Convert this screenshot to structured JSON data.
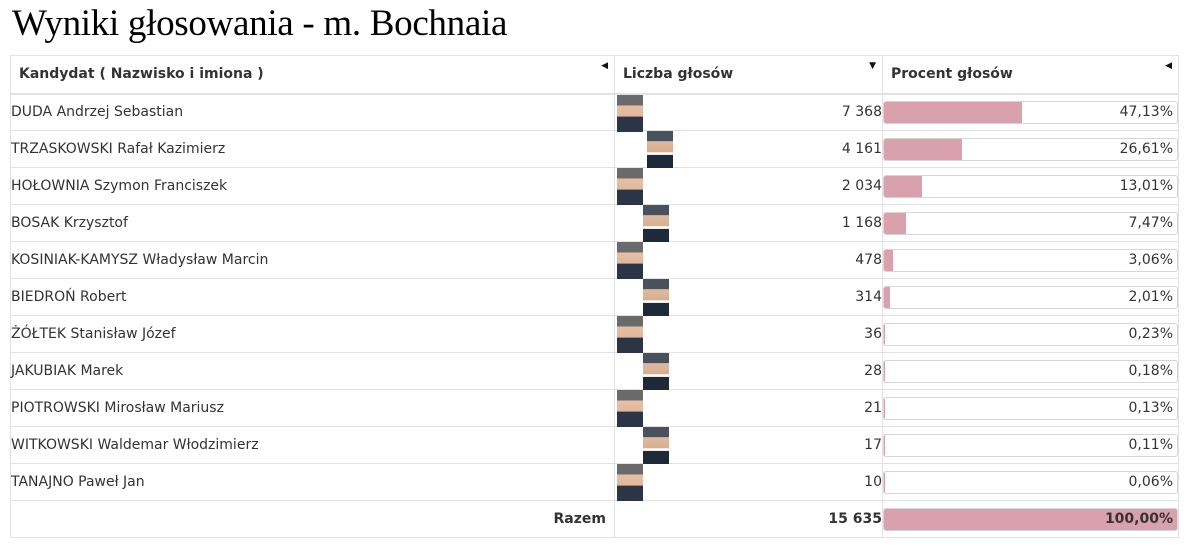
{
  "title": "Wyniki głosowania - m. Bochnaia",
  "columns": {
    "name": "Kandydat ( Nazwisko i imiona )",
    "votes": "Liczba głosów",
    "percent": "Procent głosów"
  },
  "rows": [
    {
      "name": "DUDA Andrzej Sebastian",
      "votes": "7 368",
      "percent": "47,13%",
      "share": 0.4713
    },
    {
      "name": "TRZASKOWSKI Rafał Kazimierz",
      "votes": "4 161",
      "percent": "26,61%",
      "share": 0.2661
    },
    {
      "name": "HOŁOWNIA Szymon Franciszek",
      "votes": "2 034",
      "percent": "13,01%",
      "share": 0.1301
    },
    {
      "name": "BOSAK Krzysztof",
      "votes": "1 168",
      "percent": "7,47%",
      "share": 0.0747
    },
    {
      "name": "KOSINIAK-KAMYSZ Władysław Marcin",
      "votes": "478",
      "percent": "3,06%",
      "share": 0.0306
    },
    {
      "name": "BIEDROŃ Robert",
      "votes": "314",
      "percent": "2,01%",
      "share": 0.0201
    },
    {
      "name": "ŻÓŁTEK Stanisław Józef",
      "votes": "36",
      "percent": "0,23%",
      "share": 0.0023
    },
    {
      "name": "JAKUBIAK Marek",
      "votes": "28",
      "percent": "0,18%",
      "share": 0.0018
    },
    {
      "name": "PIOTROWSKI Mirosław Mariusz",
      "votes": "21",
      "percent": "0,13%",
      "share": 0.0013
    },
    {
      "name": "WITKOWSKI Waldemar Włodzimierz",
      "votes": "17",
      "percent": "0,11%",
      "share": 0.0011
    },
    {
      "name": "TANAJNO Paweł Jan",
      "votes": "10",
      "percent": "0,06%",
      "share": 0.0006
    }
  ],
  "total": {
    "label": "Razem",
    "votes": "15 635",
    "percent": "100,00%",
    "share": 1.0
  },
  "icons": {
    "sort_name": "sort-left-icon",
    "sort_votes": "sort-down-icon",
    "sort_percent": "sort-left-icon"
  },
  "colors": {
    "bar": "#d9a0ad",
    "border": "#e2e2e2"
  }
}
